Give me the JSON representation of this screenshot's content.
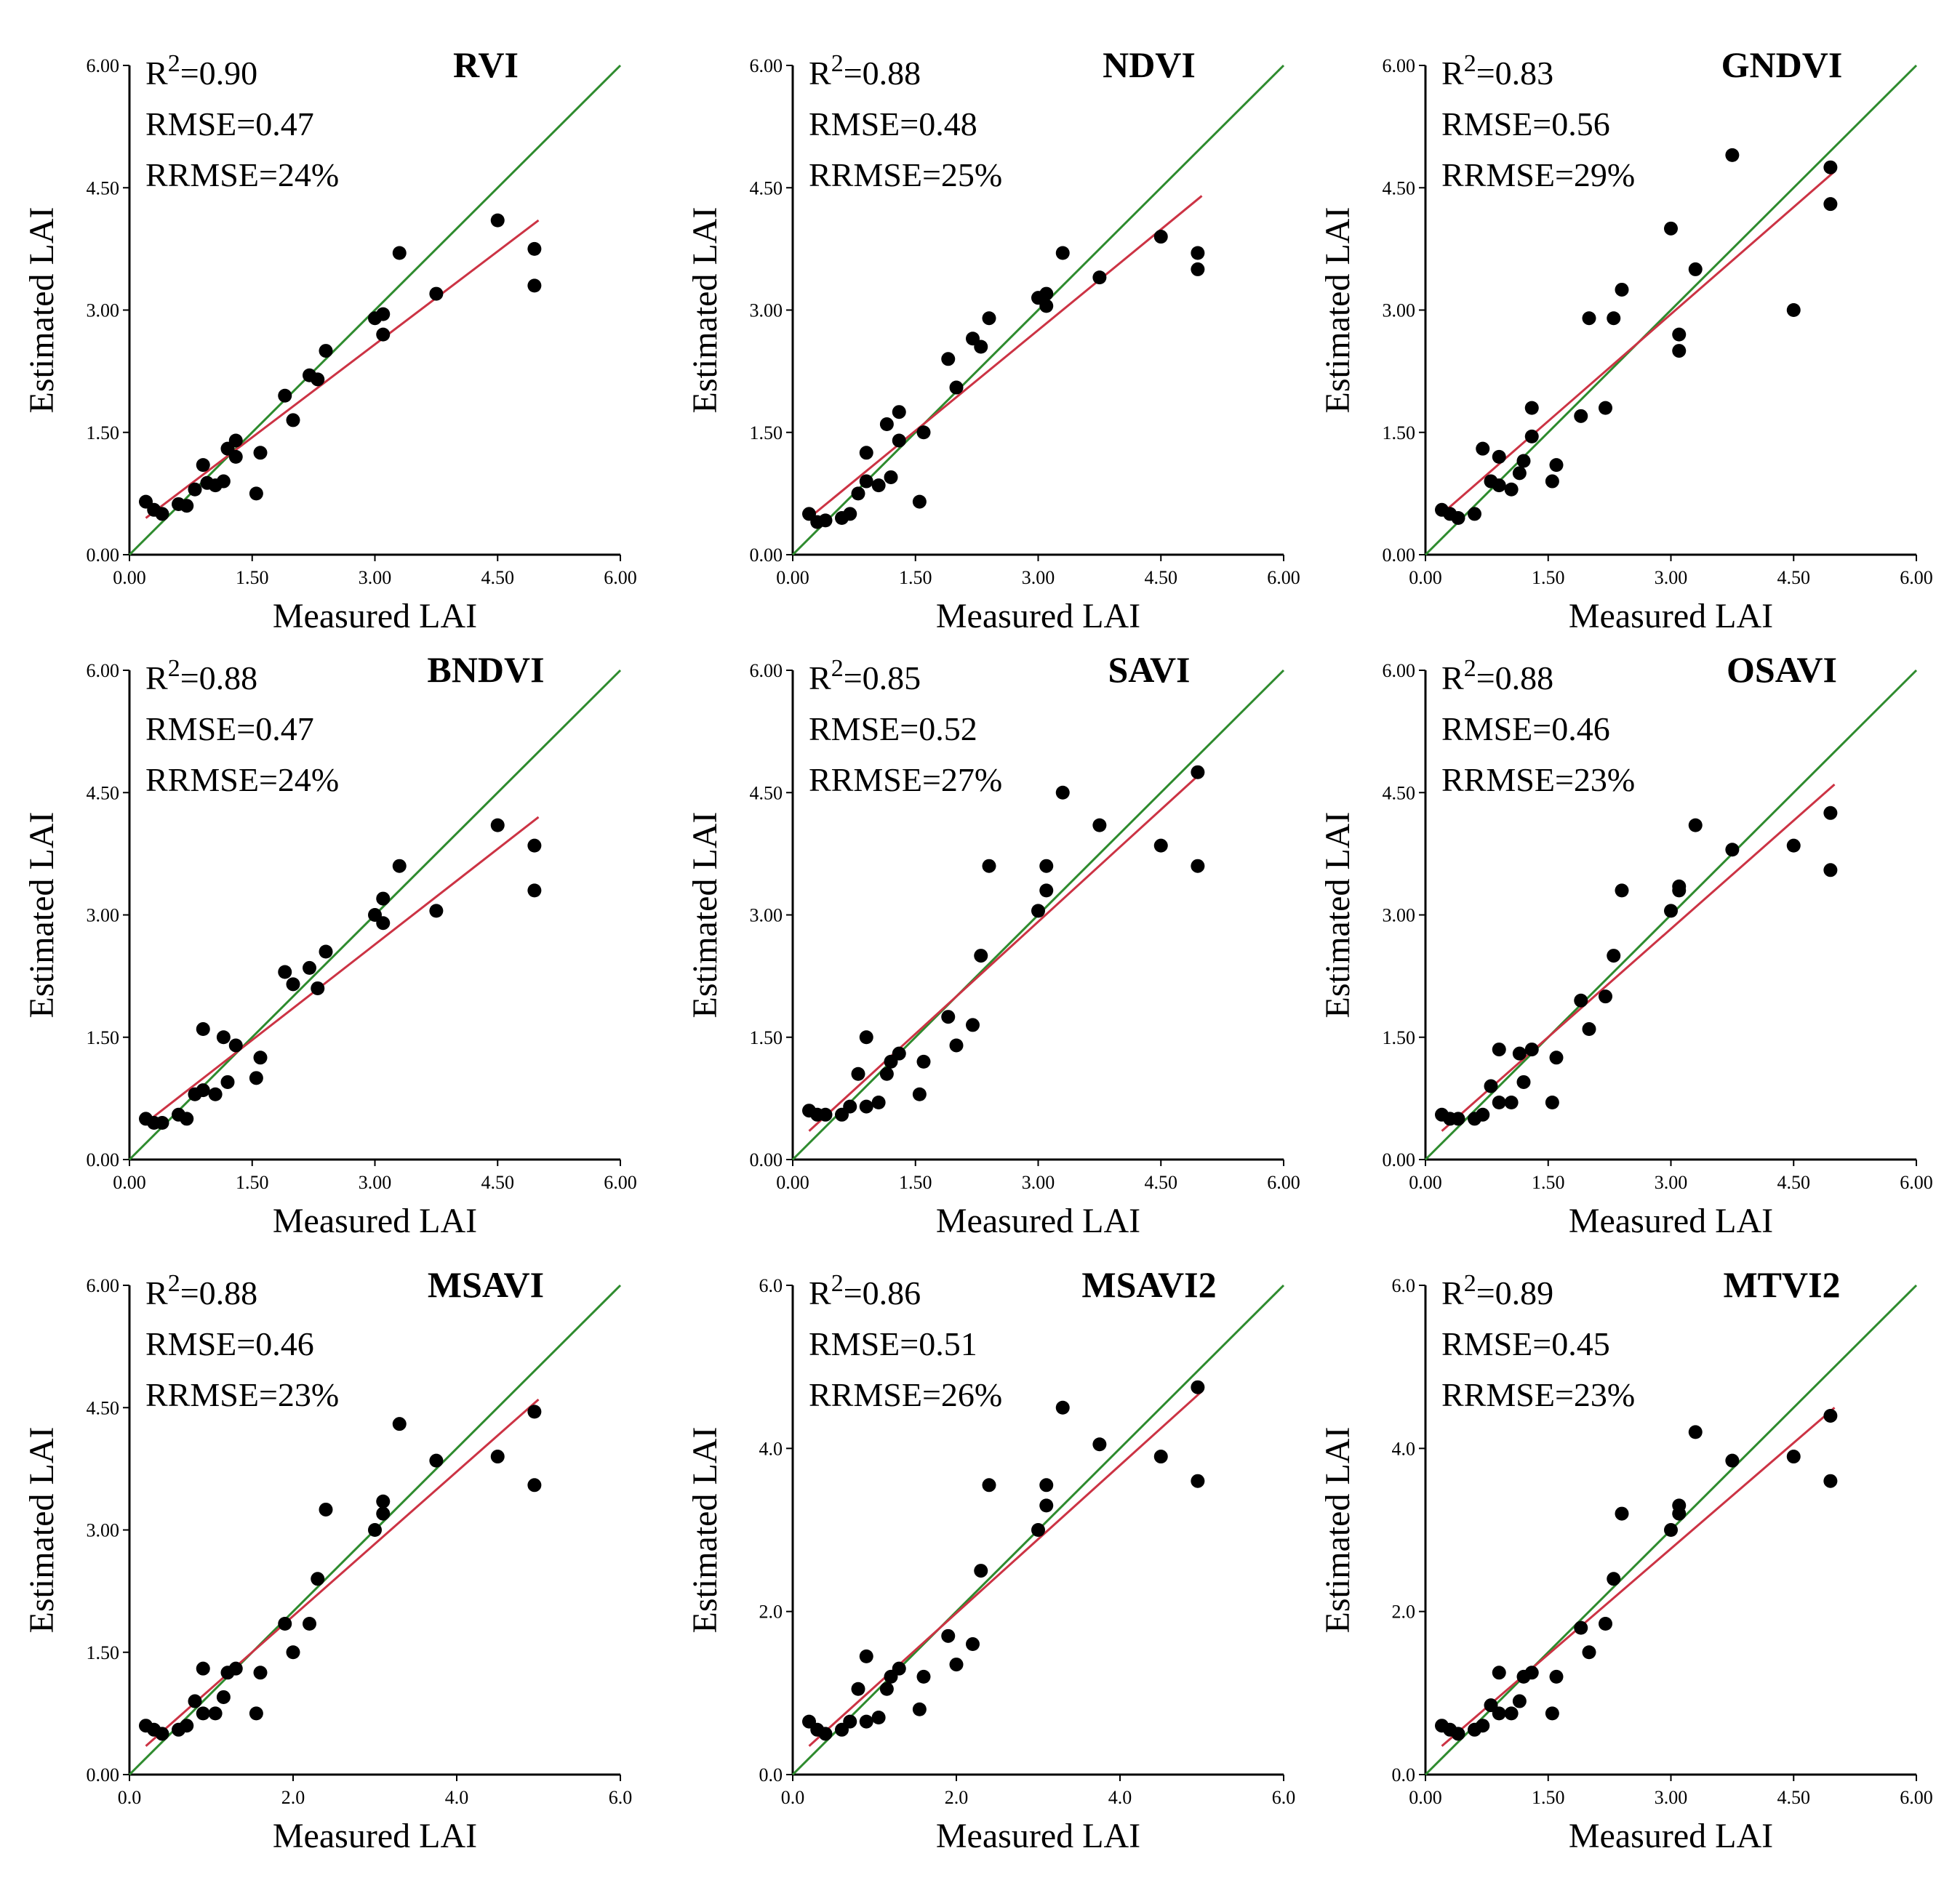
{
  "figure": {
    "xlabel": "Measured LAI",
    "ylabel": "Estimated LAI",
    "colors": {
      "one_to_one": "#2e8b2e",
      "fit": "#cc3344",
      "points": "#000000",
      "axes": "#000000"
    }
  },
  "chart_data": [
    {
      "type": "scatter",
      "title": "RVI",
      "xlabel": "Measured LAI",
      "ylabel": "Estimated LAI",
      "xlim": [
        0,
        6
      ],
      "ylim": [
        0,
        6
      ],
      "xticks": [
        "0.00",
        "1.50",
        "3.00",
        "4.50",
        "6.00"
      ],
      "yticks": [
        "0.00",
        "1.50",
        "3.00",
        "4.50",
        "6.00"
      ],
      "stats": {
        "r2": "=0.90",
        "rmse": "RMSE=0.47",
        "rrmse": "RRMSE=24%"
      },
      "fit_line": [
        [
          0.2,
          0.45
        ],
        [
          5.0,
          4.1
        ]
      ],
      "points": [
        [
          0.2,
          0.65
        ],
        [
          0.3,
          0.55
        ],
        [
          0.4,
          0.5
        ],
        [
          0.6,
          0.62
        ],
        [
          0.7,
          0.6
        ],
        [
          0.8,
          0.8
        ],
        [
          0.9,
          1.1
        ],
        [
          0.95,
          0.88
        ],
        [
          1.05,
          0.85
        ],
        [
          1.15,
          0.9
        ],
        [
          1.2,
          1.3
        ],
        [
          1.3,
          1.2
        ],
        [
          1.3,
          1.4
        ],
        [
          1.55,
          0.75
        ],
        [
          1.6,
          1.25
        ],
        [
          1.9,
          1.95
        ],
        [
          2.0,
          1.65
        ],
        [
          2.2,
          2.2
        ],
        [
          2.3,
          2.15
        ],
        [
          2.4,
          2.5
        ],
        [
          3.0,
          2.9
        ],
        [
          3.1,
          2.95
        ],
        [
          3.1,
          2.7
        ],
        [
          3.3,
          3.7
        ],
        [
          3.75,
          3.2
        ],
        [
          4.5,
          4.1
        ],
        [
          4.95,
          3.75
        ],
        [
          4.95,
          3.3
        ]
      ]
    },
    {
      "type": "scatter",
      "title": "NDVI",
      "xlabel": "Measured LAI",
      "ylabel": "Estimated LAI",
      "xlim": [
        0,
        6
      ],
      "ylim": [
        0,
        6
      ],
      "xticks": [
        "0.00",
        "1.50",
        "3.00",
        "4.50",
        "6.00"
      ],
      "yticks": [
        "0.00",
        "1.50",
        "3.00",
        "4.50",
        "6.00"
      ],
      "stats": {
        "r2": "=0.88",
        "rmse": "RMSE=0.48",
        "rrmse": "RRMSE=25%"
      },
      "fit_line": [
        [
          0.2,
          0.45
        ],
        [
          5.0,
          4.4
        ]
      ],
      "points": [
        [
          0.2,
          0.5
        ],
        [
          0.3,
          0.4
        ],
        [
          0.4,
          0.42
        ],
        [
          0.6,
          0.45
        ],
        [
          0.7,
          0.5
        ],
        [
          0.8,
          0.75
        ],
        [
          0.9,
          1.25
        ],
        [
          0.9,
          0.9
        ],
        [
          1.05,
          0.85
        ],
        [
          1.15,
          1.6
        ],
        [
          1.2,
          0.95
        ],
        [
          1.3,
          1.75
        ],
        [
          1.3,
          1.4
        ],
        [
          1.55,
          0.65
        ],
        [
          1.6,
          1.5
        ],
        [
          1.9,
          2.4
        ],
        [
          2.0,
          2.05
        ],
        [
          2.2,
          2.65
        ],
        [
          2.3,
          2.55
        ],
        [
          2.4,
          2.9
        ],
        [
          3.0,
          3.15
        ],
        [
          3.1,
          3.2
        ],
        [
          3.1,
          3.05
        ],
        [
          3.3,
          3.7
        ],
        [
          3.75,
          3.4
        ],
        [
          4.5,
          3.9
        ],
        [
          4.95,
          3.7
        ],
        [
          4.95,
          3.5
        ]
      ]
    },
    {
      "type": "scatter",
      "title": "GNDVI",
      "xlabel": "Measured LAI",
      "ylabel": "Estimated LAI",
      "xlim": [
        0,
        6
      ],
      "ylim": [
        0,
        6
      ],
      "xticks": [
        "0.00",
        "1.50",
        "3.00",
        "4.50",
        "6.00"
      ],
      "yticks": [
        "0.00",
        "1.50",
        "3.00",
        "4.50",
        "6.00"
      ],
      "stats": {
        "r2": "=0.83",
        "rmse": "RMSE=0.56",
        "rrmse": "RRMSE=29%"
      },
      "fit_line": [
        [
          0.2,
          0.5
        ],
        [
          5.0,
          4.7
        ]
      ],
      "points": [
        [
          0.2,
          0.55
        ],
        [
          0.3,
          0.5
        ],
        [
          0.4,
          0.45
        ],
        [
          0.6,
          0.5
        ],
        [
          0.7,
          1.3
        ],
        [
          0.8,
          0.9
        ],
        [
          0.9,
          1.2
        ],
        [
          0.9,
          0.85
        ],
        [
          1.05,
          0.8
        ],
        [
          1.15,
          1.0
        ],
        [
          1.2,
          1.15
        ],
        [
          1.3,
          1.8
        ],
        [
          1.3,
          1.45
        ],
        [
          1.55,
          0.9
        ],
        [
          1.6,
          1.1
        ],
        [
          1.9,
          1.7
        ],
        [
          2.0,
          2.9
        ],
        [
          2.2,
          1.8
        ],
        [
          2.3,
          2.9
        ],
        [
          2.4,
          3.25
        ],
        [
          3.0,
          4.0
        ],
        [
          3.1,
          2.7
        ],
        [
          3.1,
          2.5
        ],
        [
          3.3,
          3.5
        ],
        [
          3.75,
          4.9
        ],
        [
          4.5,
          3.0
        ],
        [
          4.95,
          4.75
        ],
        [
          4.95,
          4.3
        ]
      ]
    },
    {
      "type": "scatter",
      "title": "BNDVI",
      "xlabel": "Measured LAI",
      "ylabel": "Estimated LAI",
      "xlim": [
        0,
        6
      ],
      "ylim": [
        0,
        6
      ],
      "xticks": [
        "0.00",
        "1.50",
        "3.00",
        "4.50",
        "6.00"
      ],
      "yticks": [
        "0.00",
        "1.50",
        "3.00",
        "4.50",
        "6.00"
      ],
      "stats": {
        "r2": "=0.88",
        "rmse": "RMSE=0.47",
        "rrmse": "RRMSE=24%"
      },
      "fit_line": [
        [
          0.2,
          0.45
        ],
        [
          5.0,
          4.2
        ]
      ],
      "points": [
        [
          0.2,
          0.5
        ],
        [
          0.3,
          0.45
        ],
        [
          0.4,
          0.45
        ],
        [
          0.6,
          0.55
        ],
        [
          0.7,
          0.5
        ],
        [
          0.8,
          0.8
        ],
        [
          0.9,
          1.6
        ],
        [
          0.9,
          0.85
        ],
        [
          1.05,
          0.8
        ],
        [
          1.15,
          1.5
        ],
        [
          1.2,
          0.95
        ],
        [
          1.3,
          1.4
        ],
        [
          1.55,
          1.0
        ],
        [
          1.6,
          1.25
        ],
        [
          1.9,
          2.3
        ],
        [
          2.0,
          2.15
        ],
        [
          2.2,
          2.35
        ],
        [
          2.3,
          2.1
        ],
        [
          2.4,
          2.55
        ],
        [
          3.0,
          3.0
        ],
        [
          3.1,
          3.2
        ],
        [
          3.1,
          2.9
        ],
        [
          3.3,
          3.6
        ],
        [
          3.75,
          3.05
        ],
        [
          4.5,
          4.1
        ],
        [
          4.95,
          3.85
        ],
        [
          4.95,
          3.3
        ]
      ]
    },
    {
      "type": "scatter",
      "title": "SAVI",
      "xlabel": "Measured LAI",
      "ylabel": "Estimated LAI",
      "xlim": [
        0,
        6
      ],
      "ylim": [
        0,
        6
      ],
      "xticks": [
        "0.00",
        "1.50",
        "3.00",
        "4.50",
        "6.00"
      ],
      "yticks": [
        "0.00",
        "1.50",
        "3.00",
        "4.50",
        "6.00"
      ],
      "stats": {
        "r2": "=0.85",
        "rmse": "RMSE=0.52",
        "rrmse": "RRMSE=27%"
      },
      "fit_line": [
        [
          0.2,
          0.35
        ],
        [
          5.0,
          4.75
        ]
      ],
      "points": [
        [
          0.2,
          0.6
        ],
        [
          0.3,
          0.55
        ],
        [
          0.4,
          0.55
        ],
        [
          0.6,
          0.55
        ],
        [
          0.7,
          0.65
        ],
        [
          0.8,
          1.05
        ],
        [
          0.9,
          1.5
        ],
        [
          0.9,
          0.65
        ],
        [
          1.05,
          0.7
        ],
        [
          1.15,
          1.05
        ],
        [
          1.2,
          1.2
        ],
        [
          1.3,
          1.3
        ],
        [
          1.55,
          0.8
        ],
        [
          1.6,
          1.2
        ],
        [
          1.9,
          1.75
        ],
        [
          2.0,
          1.4
        ],
        [
          2.2,
          1.65
        ],
        [
          2.3,
          2.5
        ],
        [
          2.4,
          3.6
        ],
        [
          3.0,
          3.05
        ],
        [
          3.1,
          3.3
        ],
        [
          3.1,
          3.6
        ],
        [
          3.3,
          4.5
        ],
        [
          3.75,
          4.1
        ],
        [
          4.5,
          3.85
        ],
        [
          4.95,
          4.75
        ],
        [
          4.95,
          3.6
        ]
      ]
    },
    {
      "type": "scatter",
      "title": "OSAVI",
      "xlabel": "Measured LAI",
      "ylabel": "Estimated LAI",
      "xlim": [
        0,
        6
      ],
      "ylim": [
        0,
        6
      ],
      "xticks": [
        "0.00",
        "1.50",
        "3.00",
        "4.50",
        "6.00"
      ],
      "yticks": [
        "0.00",
        "1.50",
        "3.00",
        "4.50",
        "6.00"
      ],
      "stats": {
        "r2": "=0.88",
        "rmse": "RMSE=0.46",
        "rrmse": "RRMSE=23%"
      },
      "fit_line": [
        [
          0.2,
          0.35
        ],
        [
          5.0,
          4.6
        ]
      ],
      "points": [
        [
          0.2,
          0.55
        ],
        [
          0.3,
          0.5
        ],
        [
          0.4,
          0.5
        ],
        [
          0.6,
          0.5
        ],
        [
          0.7,
          0.55
        ],
        [
          0.8,
          0.9
        ],
        [
          0.9,
          1.35
        ],
        [
          0.9,
          0.7
        ],
        [
          1.05,
          0.7
        ],
        [
          1.15,
          1.3
        ],
        [
          1.2,
          0.95
        ],
        [
          1.3,
          1.35
        ],
        [
          1.55,
          0.7
        ],
        [
          1.6,
          1.25
        ],
        [
          1.9,
          1.95
        ],
        [
          2.0,
          1.6
        ],
        [
          2.2,
          2.0
        ],
        [
          2.3,
          2.5
        ],
        [
          2.4,
          3.3
        ],
        [
          3.0,
          3.05
        ],
        [
          3.1,
          3.3
        ],
        [
          3.1,
          3.35
        ],
        [
          3.3,
          4.1
        ],
        [
          3.75,
          3.8
        ],
        [
          4.5,
          3.85
        ],
        [
          4.95,
          4.25
        ],
        [
          4.95,
          3.55
        ]
      ]
    },
    {
      "type": "scatter",
      "title": "MSAVI",
      "xlabel": "Measured LAI",
      "ylabel": "Estimated LAI",
      "xlim": [
        0,
        6
      ],
      "ylim": [
        0,
        6
      ],
      "xticks": [
        "0.0",
        "2.0",
        "4.0",
        "6.0"
      ],
      "yticks": [
        "0.00",
        "1.50",
        "3.00",
        "4.50",
        "6.00"
      ],
      "stats": {
        "r2": "=0.88",
        "rmse": "RMSE=0.46",
        "rrmse": "RRMSE=23%"
      },
      "fit_line": [
        [
          0.2,
          0.35
        ],
        [
          5.0,
          4.6
        ]
      ],
      "points": [
        [
          0.2,
          0.6
        ],
        [
          0.3,
          0.55
        ],
        [
          0.4,
          0.5
        ],
        [
          0.6,
          0.55
        ],
        [
          0.7,
          0.6
        ],
        [
          0.8,
          0.9
        ],
        [
          0.9,
          1.3
        ],
        [
          0.9,
          0.75
        ],
        [
          1.05,
          0.75
        ],
        [
          1.15,
          0.95
        ],
        [
          1.2,
          1.25
        ],
        [
          1.3,
          1.3
        ],
        [
          1.55,
          0.75
        ],
        [
          1.6,
          1.25
        ],
        [
          1.9,
          1.85
        ],
        [
          2.0,
          1.5
        ],
        [
          2.2,
          1.85
        ],
        [
          2.3,
          2.4
        ],
        [
          2.4,
          3.25
        ],
        [
          3.0,
          3.0
        ],
        [
          3.1,
          3.2
        ],
        [
          3.1,
          3.35
        ],
        [
          3.3,
          4.3
        ],
        [
          3.75,
          3.85
        ],
        [
          4.5,
          3.9
        ],
        [
          4.95,
          4.45
        ],
        [
          4.95,
          3.55
        ]
      ]
    },
    {
      "type": "scatter",
      "title": "MSAVI2",
      "xlabel": "Measured LAI",
      "ylabel": "Estimated LAI",
      "xlim": [
        0,
        6
      ],
      "ylim": [
        0,
        6
      ],
      "xticks": [
        "0.0",
        "2.0",
        "4.0",
        "6.0"
      ],
      "yticks": [
        "0.0",
        "2.0",
        "4.0",
        "6.0"
      ],
      "stats": {
        "r2": "=0.86",
        "rmse": "RMSE=0.51",
        "rrmse": "RRMSE=26%"
      },
      "fit_line": [
        [
          0.2,
          0.35
        ],
        [
          5.0,
          4.7
        ]
      ],
      "points": [
        [
          0.2,
          0.65
        ],
        [
          0.3,
          0.55
        ],
        [
          0.4,
          0.5
        ],
        [
          0.6,
          0.55
        ],
        [
          0.7,
          0.65
        ],
        [
          0.8,
          1.05
        ],
        [
          0.9,
          1.45
        ],
        [
          0.9,
          0.65
        ],
        [
          1.05,
          0.7
        ],
        [
          1.15,
          1.05
        ],
        [
          1.2,
          1.2
        ],
        [
          1.3,
          1.3
        ],
        [
          1.55,
          0.8
        ],
        [
          1.6,
          1.2
        ],
        [
          1.9,
          1.7
        ],
        [
          2.0,
          1.35
        ],
        [
          2.2,
          1.6
        ],
        [
          2.3,
          2.5
        ],
        [
          2.4,
          3.55
        ],
        [
          3.0,
          3.0
        ],
        [
          3.1,
          3.3
        ],
        [
          3.1,
          3.55
        ],
        [
          3.3,
          4.5
        ],
        [
          3.75,
          4.05
        ],
        [
          4.5,
          3.9
        ],
        [
          4.95,
          4.75
        ],
        [
          4.95,
          3.6
        ]
      ]
    },
    {
      "type": "scatter",
      "title": "MTVI2",
      "xlabel": "Measured LAI",
      "ylabel": "Estimated LAI",
      "xlim": [
        0,
        6
      ],
      "ylim": [
        0,
        6
      ],
      "xticks": [
        "0.00",
        "1.50",
        "3.00",
        "4.50",
        "6.00"
      ],
      "yticks": [
        "0.0",
        "2.0",
        "4.0",
        "6.0"
      ],
      "stats": {
        "r2": "=0.89",
        "rmse": "RMSE=0.45",
        "rrmse": "RRMSE=23%"
      },
      "fit_line": [
        [
          0.2,
          0.35
        ],
        [
          5.0,
          4.5
        ]
      ],
      "points": [
        [
          0.2,
          0.6
        ],
        [
          0.3,
          0.55
        ],
        [
          0.4,
          0.5
        ],
        [
          0.6,
          0.55
        ],
        [
          0.7,
          0.6
        ],
        [
          0.8,
          0.85
        ],
        [
          0.9,
          1.25
        ],
        [
          0.9,
          0.75
        ],
        [
          1.05,
          0.75
        ],
        [
          1.15,
          0.9
        ],
        [
          1.2,
          1.2
        ],
        [
          1.3,
          1.25
        ],
        [
          1.55,
          0.75
        ],
        [
          1.6,
          1.2
        ],
        [
          1.9,
          1.8
        ],
        [
          2.0,
          1.5
        ],
        [
          2.2,
          1.85
        ],
        [
          2.3,
          2.4
        ],
        [
          2.4,
          3.2
        ],
        [
          3.0,
          3.0
        ],
        [
          3.1,
          3.2
        ],
        [
          3.1,
          3.3
        ],
        [
          3.3,
          4.2
        ],
        [
          3.75,
          3.85
        ],
        [
          4.5,
          3.9
        ],
        [
          4.95,
          4.4
        ],
        [
          4.95,
          3.6
        ]
      ]
    }
  ]
}
